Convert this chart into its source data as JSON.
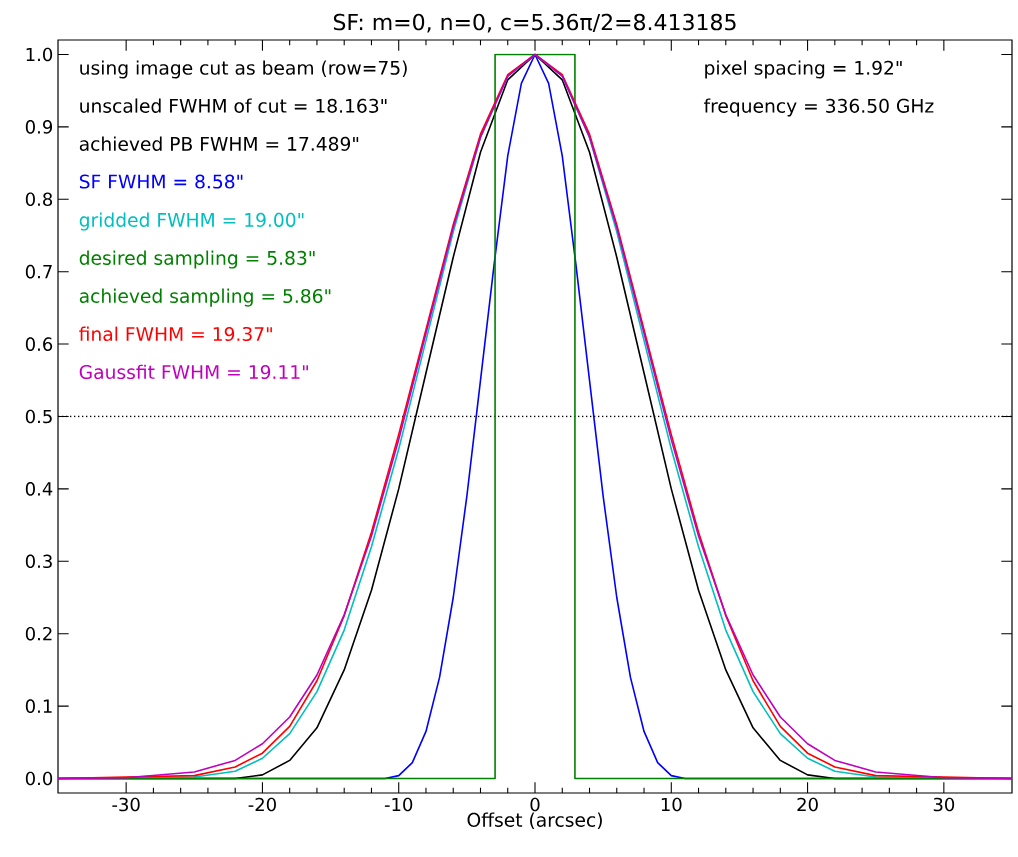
{
  "chart_data": {
    "type": "line",
    "title": "SF: m=0, n=0, c=5.36π/2=8.413185",
    "xlabel": "Offset (arcsec)",
    "xlim": [
      -35,
      35
    ],
    "ylim": [
      -0.02,
      1.02
    ],
    "xticks": [
      -30,
      -20,
      -10,
      {
        "value": 0,
        "label": "0"
      },
      10,
      20,
      30
    ],
    "yticks": [
      {
        "value": 0,
        "label": "0.0"
      },
      0.1,
      0.2,
      0.3,
      0.4,
      0.5,
      0.6,
      0.7,
      0.8,
      0.9,
      {
        "value": 1,
        "label": "1.0"
      }
    ],
    "grid": false,
    "legend": "top left",
    "marker": "none",
    "line_style": "solid",
    "annotations": [
      "using image cut as beam (row=75)",
      "unscaled FWHM of cut = 18.163\"",
      "achieved PB FWHM = 17.489\"",
      "desired sampling = 5.83\"",
      "pixel spacing = 1.92\"",
      "frequency = 336.50 GHz"
    ],
    "ref_lines": [
      {
        "axis": "y",
        "value": 0.5,
        "color": "#000000",
        "line_style": "dotted"
      }
    ],
    "series": [
      {
        "color": "#000000",
        "x": [
          -35,
          -25,
          -22,
          -20,
          -18,
          -16,
          -14,
          -12,
          -10,
          -8,
          -6,
          -4,
          -2,
          0,
          2,
          4,
          6,
          8,
          10,
          12,
          14,
          16,
          18,
          20,
          22,
          25,
          35
        ],
        "values": [
          0,
          0,
          0,
          0.005,
          0.025,
          0.07,
          0.15,
          0.26,
          0.4,
          0.56,
          0.72,
          0.865,
          0.965,
          1,
          0.965,
          0.865,
          0.72,
          0.56,
          0.4,
          0.26,
          0.15,
          0.07,
          0.025,
          0.005,
          0,
          0,
          0
        ]
      },
      {
        "name": "SF FWHM = 8.58\"",
        "color": "#0000ff",
        "x": [
          -35,
          -11,
          -10,
          -9,
          -8,
          -7,
          -6,
          -5,
          -4,
          -3,
          -2,
          -1,
          0,
          1,
          2,
          3,
          4,
          5,
          6,
          7,
          8,
          9,
          10,
          11,
          35
        ],
        "values": [
          0,
          0,
          0.004,
          0.022,
          0.065,
          0.14,
          0.25,
          0.39,
          0.55,
          0.71,
          0.86,
          0.96,
          1,
          0.96,
          0.86,
          0.71,
          0.55,
          0.39,
          0.25,
          0.14,
          0.065,
          0.022,
          0.004,
          0,
          0
        ]
      },
      {
        "name": "gridded FWHM = 19.00\"",
        "color": "#00bfbf",
        "x": [
          -35,
          -30,
          -25,
          -22,
          -20,
          -18,
          -16,
          -14,
          -12,
          -10,
          -8,
          -6,
          -4,
          -2,
          0,
          2,
          4,
          6,
          8,
          10,
          12,
          14,
          16,
          18,
          20,
          22,
          25,
          30,
          35
        ],
        "values": [
          0,
          0,
          0.002,
          0.01,
          0.028,
          0.062,
          0.12,
          0.205,
          0.32,
          0.455,
          0.605,
          0.755,
          0.885,
          0.97,
          1,
          0.97,
          0.885,
          0.755,
          0.605,
          0.455,
          0.32,
          0.205,
          0.12,
          0.062,
          0.028,
          0.01,
          0.002,
          0,
          0
        ]
      },
      {
        "name": "achieved sampling = 5.86\"",
        "color": "#008000",
        "x": [
          -35,
          -2.93,
          -2.93,
          2.93,
          2.93,
          35
        ],
        "values": [
          0,
          0,
          1,
          1,
          0,
          0
        ]
      },
      {
        "name": "final FWHM = 19.37\"",
        "color": "#ff0000",
        "x": [
          -35,
          -30,
          -25,
          -22,
          -20,
          -18,
          -16,
          -14,
          -12,
          -10,
          -8,
          -6,
          -4,
          -2,
          0,
          2,
          4,
          6,
          8,
          10,
          12,
          14,
          16,
          18,
          20,
          22,
          25,
          30,
          35
        ],
        "values": [
          0,
          0.002,
          0.004,
          0.016,
          0.035,
          0.072,
          0.135,
          0.225,
          0.34,
          0.475,
          0.62,
          0.765,
          0.89,
          0.972,
          1,
          0.972,
          0.89,
          0.765,
          0.62,
          0.475,
          0.34,
          0.225,
          0.135,
          0.072,
          0.035,
          0.016,
          0.004,
          0.002,
          0
        ]
      },
      {
        "name": "Gaussfit FWHM = 19.11\"",
        "color": "#bf00bf",
        "x": [
          -35,
          -30,
          -25,
          -22,
          -20,
          -18,
          -16,
          -14,
          -12,
          -10,
          -8,
          -6,
          -4,
          -2,
          0,
          2,
          4,
          6,
          8,
          10,
          12,
          14,
          16,
          18,
          20,
          22,
          25,
          30,
          35
        ],
        "values": [
          0,
          0.001,
          0.009,
          0.025,
          0.048,
          0.085,
          0.143,
          0.226,
          0.335,
          0.468,
          0.615,
          0.761,
          0.886,
          0.97,
          1,
          0.97,
          0.886,
          0.761,
          0.615,
          0.468,
          0.335,
          0.226,
          0.143,
          0.085,
          0.048,
          0.025,
          0.009,
          0.001,
          0
        ]
      }
    ]
  }
}
